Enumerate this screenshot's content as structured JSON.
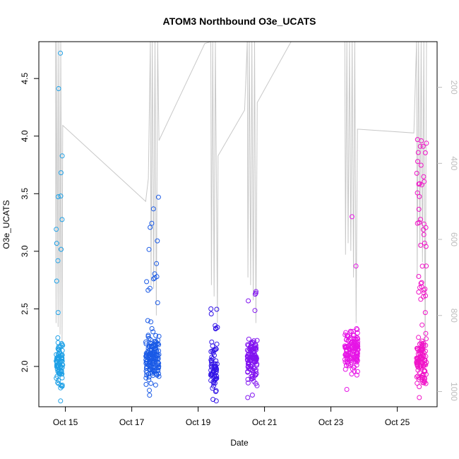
{
  "chart_data": {
    "type": "scatter",
    "title": "ATOM3 Northbound O3e_UCATS",
    "xlabel": "Date",
    "ylabel": "O3e_UCATS",
    "x_ticks": [
      "Oct 15",
      "Oct 17",
      "Oct 19",
      "Oct 21",
      "Oct 23",
      "Oct 25"
    ],
    "x_tick_days": [
      15,
      17,
      19,
      21,
      23,
      25
    ],
    "xlim_days": [
      14.2,
      26.2
    ],
    "ylim": [
      1.65,
      4.82
    ],
    "y_ticks": [
      2.0,
      2.5,
      3.0,
      3.5,
      4.0,
      4.5
    ],
    "y_tick_labels": [
      "2.0",
      "2.5",
      "3.0",
      "3.5",
      "4.0",
      "4.5"
    ],
    "y2_ticks": [
      200,
      400,
      600,
      800,
      1000
    ],
    "y2_tick_labels": [
      "200",
      "400",
      "600",
      "800",
      "1000"
    ],
    "y2_lim": [
      1040,
      80
    ],
    "y2_reversed": true,
    "grid": false,
    "legend": "none",
    "point_marker": "open-circle",
    "color_scale": "blue-to-magenta by time",
    "pressure_line_color": "#c8c8c8",
    "flights": [
      {
        "t0": 14.72,
        "t1": 14.92,
        "color": "#1ea0e6",
        "y_range": [
          1.7,
          4.72
        ],
        "samples": 95,
        "tail_bias": 0.25
      },
      {
        "t0": 17.42,
        "t1": 17.82,
        "color": "#1a5ae6",
        "y_range": [
          1.75,
          3.47
        ],
        "samples": 170,
        "tail_bias": 0.12
      },
      {
        "t0": 19.38,
        "t1": 19.58,
        "color": "#3214e6",
        "y_range": [
          1.7,
          2.5
        ],
        "samples": 70,
        "tail_bias": 0.3
      },
      {
        "t0": 20.48,
        "t1": 20.78,
        "color": "#8214f0",
        "y_range": [
          1.73,
          2.65
        ],
        "samples": 120,
        "tail_bias": 0.08
      },
      {
        "t0": 23.42,
        "t1": 23.82,
        "color": "#e614e6",
        "y_range": [
          1.8,
          3.3
        ],
        "samples": 140,
        "tail_bias": 0.06
      },
      {
        "t0": 25.58,
        "t1": 25.88,
        "color": "#f014c8",
        "y_range": [
          1.73,
          3.97
        ],
        "samples": 150,
        "tail_bias": 0.35
      }
    ],
    "pressure_track": [
      [
        14.7,
        80
      ],
      [
        14.72,
        820
      ],
      [
        14.74,
        80
      ],
      [
        14.78,
        830
      ],
      [
        14.8,
        80
      ],
      [
        14.84,
        850
      ],
      [
        14.86,
        80
      ],
      [
        14.9,
        870
      ],
      [
        14.92,
        300
      ],
      [
        17.42,
        500
      ],
      [
        17.5,
        440
      ],
      [
        17.56,
        80
      ],
      [
        17.58,
        720
      ],
      [
        17.62,
        80
      ],
      [
        17.66,
        730
      ],
      [
        17.7,
        80
      ],
      [
        17.74,
        800
      ],
      [
        17.78,
        80
      ],
      [
        17.82,
        340
      ],
      [
        19.2,
        85
      ],
      [
        19.38,
        80
      ],
      [
        19.4,
        720
      ],
      [
        19.44,
        80
      ],
      [
        19.48,
        750
      ],
      [
        19.52,
        80
      ],
      [
        19.58,
        820
      ],
      [
        19.6,
        380
      ],
      [
        20.4,
        260
      ],
      [
        20.48,
        80
      ],
      [
        20.5,
        700
      ],
      [
        20.54,
        80
      ],
      [
        20.58,
        720
      ],
      [
        20.62,
        80
      ],
      [
        20.66,
        760
      ],
      [
        20.7,
        80
      ],
      [
        20.74,
        820
      ],
      [
        20.78,
        240
      ],
      [
        21.8,
        80
      ],
      [
        23.42,
        80
      ],
      [
        23.44,
        640
      ],
      [
        23.48,
        80
      ],
      [
        23.52,
        610
      ],
      [
        23.56,
        80
      ],
      [
        23.6,
        630
      ],
      [
        23.64,
        80
      ],
      [
        23.68,
        700
      ],
      [
        23.72,
        80
      ],
      [
        23.76,
        820
      ],
      [
        23.8,
        310
      ],
      [
        25.5,
        320
      ],
      [
        25.58,
        80
      ],
      [
        25.6,
        700
      ],
      [
        25.64,
        80
      ],
      [
        25.68,
        620
      ],
      [
        25.72,
        80
      ],
      [
        25.76,
        660
      ],
      [
        25.8,
        80
      ],
      [
        25.84,
        900
      ],
      [
        25.88,
        80
      ]
    ]
  }
}
